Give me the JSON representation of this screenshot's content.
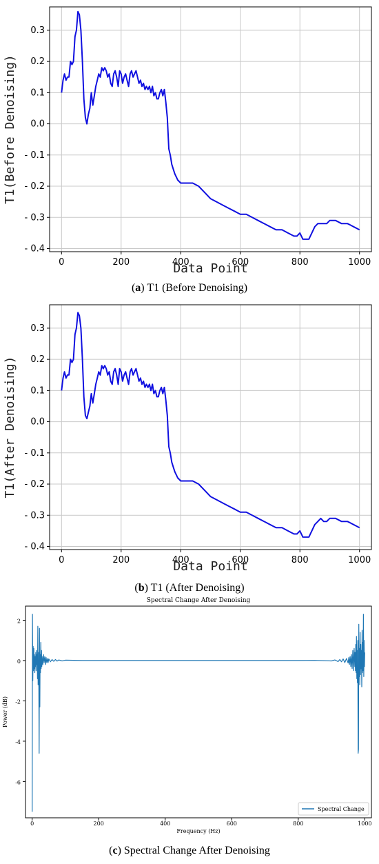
{
  "captions": {
    "a": {
      "letter": "a",
      "text": "T1 (Before Denoising)"
    },
    "b": {
      "letter": "b",
      "text": "T1 (After Denoising)"
    },
    "c": {
      "letter": "c",
      "text": "Spectral Change After Denoising"
    }
  },
  "chart_data": [
    {
      "type": "line",
      "title": "",
      "xlabel": "Data Point",
      "ylabel": "T1(Before Denoising)",
      "xlim": [
        -40,
        1040
      ],
      "ylim": [
        -0.41,
        0.375
      ],
      "xticks": [
        0,
        200,
        400,
        600,
        800,
        1000
      ],
      "yticks": [
        0.3,
        0.2,
        0.1,
        0.0,
        -0.1,
        -0.2,
        -0.3,
        -0.4
      ],
      "ytick_labels": [
        "0.3",
        "0.2",
        "0.1",
        "0.0",
        "- 0.1",
        "- 0.2",
        "- 0.3",
        "- 0.4"
      ],
      "grid": true,
      "color": "#1010e0",
      "x": [
        0,
        5,
        10,
        15,
        20,
        25,
        30,
        35,
        40,
        45,
        50,
        55,
        60,
        65,
        70,
        75,
        80,
        85,
        90,
        95,
        100,
        105,
        110,
        115,
        120,
        125,
        130,
        135,
        140,
        145,
        150,
        155,
        160,
        165,
        170,
        175,
        180,
        185,
        190,
        195,
        200,
        205,
        210,
        215,
        220,
        225,
        230,
        235,
        240,
        245,
        250,
        255,
        260,
        265,
        270,
        275,
        280,
        285,
        290,
        295,
        300,
        305,
        310,
        315,
        320,
        325,
        330,
        335,
        340,
        345,
        350,
        355,
        360,
        365,
        370,
        380,
        390,
        400,
        410,
        420,
        440,
        460,
        480,
        500,
        520,
        540,
        560,
        580,
        600,
        620,
        640,
        660,
        680,
        700,
        720,
        740,
        760,
        780,
        790,
        800,
        805,
        810,
        820,
        830,
        840,
        850,
        860,
        870,
        880,
        890,
        900,
        920,
        940,
        960,
        980,
        1000
      ],
      "y": [
        0.1,
        0.14,
        0.16,
        0.14,
        0.15,
        0.15,
        0.2,
        0.19,
        0.2,
        0.28,
        0.3,
        0.36,
        0.35,
        0.3,
        0.2,
        0.08,
        0.02,
        0.0,
        0.03,
        0.05,
        0.1,
        0.06,
        0.09,
        0.12,
        0.14,
        0.16,
        0.15,
        0.18,
        0.17,
        0.18,
        0.17,
        0.15,
        0.16,
        0.13,
        0.12,
        0.16,
        0.17,
        0.15,
        0.12,
        0.17,
        0.16,
        0.13,
        0.15,
        0.16,
        0.14,
        0.12,
        0.16,
        0.17,
        0.15,
        0.16,
        0.17,
        0.15,
        0.13,
        0.14,
        0.12,
        0.13,
        0.11,
        0.12,
        0.11,
        0.12,
        0.1,
        0.12,
        0.09,
        0.1,
        0.08,
        0.08,
        0.1,
        0.11,
        0.09,
        0.11,
        0.07,
        0.02,
        -0.08,
        -0.1,
        -0.13,
        -0.16,
        -0.18,
        -0.19,
        -0.19,
        -0.19,
        -0.19,
        -0.2,
        -0.22,
        -0.24,
        -0.25,
        -0.26,
        -0.27,
        -0.28,
        -0.29,
        -0.29,
        -0.3,
        -0.31,
        -0.32,
        -0.33,
        -0.34,
        -0.34,
        -0.35,
        -0.36,
        -0.36,
        -0.35,
        -0.36,
        -0.37,
        -0.37,
        -0.37,
        -0.35,
        -0.33,
        -0.32,
        -0.32,
        -0.32,
        -0.32,
        -0.31,
        -0.31,
        -0.32,
        -0.32,
        -0.33,
        -0.34
      ]
    },
    {
      "type": "line",
      "title": "",
      "xlabel": "Data Point",
      "ylabel": "T1(After Denoising)",
      "xlim": [
        -40,
        1040
      ],
      "ylim": [
        -0.41,
        0.375
      ],
      "xticks": [
        0,
        200,
        400,
        600,
        800,
        1000
      ],
      "yticks": [
        0.3,
        0.2,
        0.1,
        0.0,
        -0.1,
        -0.2,
        -0.3,
        -0.4
      ],
      "ytick_labels": [
        "0.3",
        "0.2",
        "0.1",
        "0.0",
        "- 0.1",
        "- 0.2",
        "- 0.3",
        "- 0.4"
      ],
      "grid": true,
      "color": "#1010e0",
      "x": [
        0,
        5,
        10,
        15,
        20,
        25,
        30,
        35,
        40,
        45,
        50,
        55,
        60,
        65,
        70,
        75,
        80,
        85,
        90,
        95,
        100,
        105,
        110,
        115,
        120,
        125,
        130,
        135,
        140,
        145,
        150,
        155,
        160,
        165,
        170,
        175,
        180,
        185,
        190,
        195,
        200,
        205,
        210,
        215,
        220,
        225,
        230,
        235,
        240,
        245,
        250,
        255,
        260,
        265,
        270,
        275,
        280,
        285,
        290,
        295,
        300,
        305,
        310,
        315,
        320,
        325,
        330,
        335,
        340,
        345,
        350,
        355,
        360,
        365,
        370,
        380,
        390,
        400,
        410,
        420,
        440,
        460,
        480,
        500,
        520,
        540,
        560,
        580,
        600,
        620,
        640,
        660,
        680,
        700,
        720,
        740,
        760,
        780,
        790,
        800,
        805,
        810,
        820,
        830,
        840,
        850,
        860,
        870,
        880,
        890,
        900,
        920,
        940,
        960,
        980,
        1000
      ],
      "y": [
        0.1,
        0.14,
        0.16,
        0.14,
        0.15,
        0.15,
        0.2,
        0.19,
        0.2,
        0.28,
        0.3,
        0.35,
        0.34,
        0.3,
        0.2,
        0.08,
        0.02,
        0.01,
        0.03,
        0.05,
        0.09,
        0.06,
        0.09,
        0.12,
        0.14,
        0.16,
        0.15,
        0.18,
        0.17,
        0.18,
        0.17,
        0.15,
        0.16,
        0.13,
        0.12,
        0.16,
        0.17,
        0.15,
        0.12,
        0.17,
        0.16,
        0.13,
        0.15,
        0.16,
        0.14,
        0.12,
        0.16,
        0.17,
        0.15,
        0.16,
        0.17,
        0.15,
        0.13,
        0.14,
        0.12,
        0.13,
        0.11,
        0.12,
        0.11,
        0.12,
        0.1,
        0.12,
        0.09,
        0.1,
        0.08,
        0.08,
        0.1,
        0.11,
        0.09,
        0.11,
        0.07,
        0.02,
        -0.08,
        -0.1,
        -0.13,
        -0.16,
        -0.18,
        -0.19,
        -0.19,
        -0.19,
        -0.19,
        -0.2,
        -0.22,
        -0.24,
        -0.25,
        -0.26,
        -0.27,
        -0.28,
        -0.29,
        -0.29,
        -0.3,
        -0.31,
        -0.32,
        -0.33,
        -0.34,
        -0.34,
        -0.35,
        -0.36,
        -0.36,
        -0.35,
        -0.36,
        -0.37,
        -0.37,
        -0.37,
        -0.35,
        -0.33,
        -0.32,
        -0.31,
        -0.32,
        -0.32,
        -0.31,
        -0.31,
        -0.32,
        -0.32,
        -0.33,
        -0.34
      ]
    },
    {
      "type": "line",
      "title": "Spectral Change After Denoising",
      "xlabel": "Frequency (Hz)",
      "ylabel": "Power (dB)",
      "xlim": [
        -20,
        1020
      ],
      "ylim": [
        -7.8,
        2.7
      ],
      "xticks": [
        0,
        200,
        400,
        600,
        800,
        1000
      ],
      "yticks": [
        2,
        0,
        -2,
        -4,
        -6
      ],
      "grid": false,
      "legend": {
        "position": "lower-right",
        "entries": [
          "Spectral Change"
        ]
      },
      "color": "#1f77b4",
      "x": [
        0,
        1,
        2,
        3,
        4,
        5,
        6,
        7,
        8,
        9,
        10,
        11,
        12,
        13,
        14,
        15,
        16,
        17,
        18,
        19,
        20,
        21,
        22,
        23,
        24,
        25,
        26,
        27,
        28,
        29,
        30,
        32,
        34,
        36,
        38,
        40,
        42,
        44,
        46,
        48,
        50,
        55,
        60,
        65,
        70,
        75,
        80,
        90,
        100,
        150,
        200,
        300,
        400,
        500,
        600,
        700,
        800,
        850,
        900,
        910,
        920,
        925,
        930,
        935,
        940,
        945,
        950,
        952,
        954,
        956,
        958,
        960,
        962,
        964,
        966,
        968,
        970,
        971,
        972,
        973,
        974,
        975,
        976,
        977,
        978,
        979,
        980,
        981,
        982,
        983,
        984,
        985,
        986,
        987,
        988,
        989,
        990,
        991,
        992,
        993,
        994,
        995,
        996,
        997,
        998,
        999,
        1000
      ],
      "y": [
        -7.5,
        2.3,
        -1.0,
        0.7,
        -0.5,
        0.6,
        -0.4,
        0.3,
        -0.6,
        0.2,
        -0.3,
        0.4,
        -0.5,
        0.5,
        -0.2,
        0.3,
        -0.9,
        1.7,
        -1.2,
        0.4,
        -0.8,
        -4.6,
        1.6,
        -2.3,
        0.3,
        -0.6,
        0.9,
        -0.4,
        0.5,
        -0.3,
        0.2,
        -0.2,
        0.3,
        -0.1,
        0.2,
        -0.2,
        0.15,
        -0.1,
        0.1,
        -0.1,
        0.08,
        -0.06,
        0.05,
        -0.04,
        0.05,
        -0.03,
        0.03,
        -0.02,
        0.02,
        0.0,
        0.0,
        0.0,
        0.0,
        0.0,
        0.0,
        0.0,
        0.0,
        0.01,
        -0.02,
        0.03,
        -0.05,
        0.05,
        -0.06,
        0.08,
        -0.1,
        0.1,
        -0.12,
        0.15,
        -0.2,
        0.2,
        -0.3,
        0.3,
        -0.4,
        0.5,
        -0.5,
        0.6,
        -0.3,
        0.4,
        -0.5,
        0.8,
        -0.6,
        1.2,
        -0.9,
        0.5,
        -1.1,
        1.0,
        -4.6,
        -4.4,
        1.8,
        -0.8,
        0.6,
        -1.2,
        1.4,
        -0.7,
        0.8,
        -0.4,
        0.5,
        -1.3,
        1.5,
        -0.6,
        0.9,
        -0.5,
        2.3,
        -0.8,
        1.0,
        -0.3,
        0.4
      ]
    }
  ]
}
